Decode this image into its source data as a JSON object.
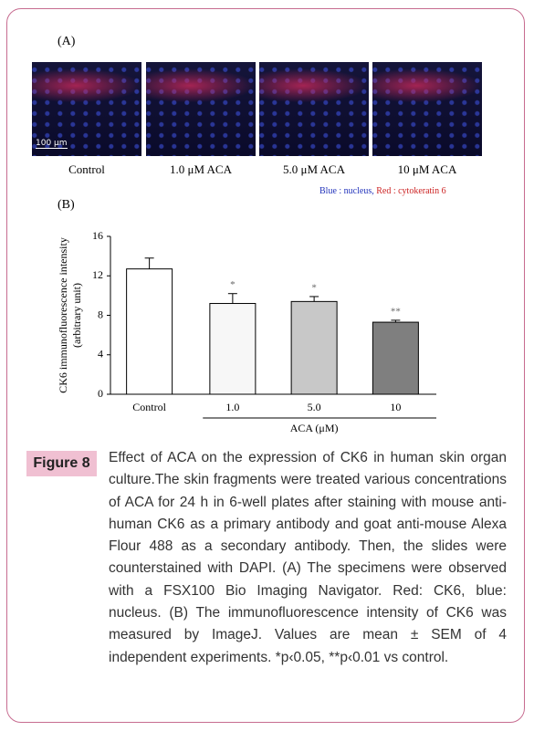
{
  "panel_a": {
    "label": "(A)",
    "scale_bar": "100 μm",
    "captions": [
      "Control",
      "1.0 μM ACA",
      "5.0 μM ACA",
      "10 μM ACA"
    ],
    "legend": [
      "Blue : nucleus,",
      "Red : cytokeratin 6"
    ]
  },
  "chart_data": {
    "type": "bar",
    "panel_label": "(B)",
    "categories": [
      "Control",
      "1.0",
      "5.0",
      "10"
    ],
    "values": [
      12.7,
      9.2,
      9.4,
      7.3
    ],
    "errors": [
      1.1,
      1.0,
      0.5,
      0.2
    ],
    "significance": [
      null,
      "*",
      "*",
      "**"
    ],
    "colors": [
      "#ffffff",
      "#f7f7f7",
      "#c8c8c8",
      "#7f7f7f"
    ],
    "ylabel": [
      "CK6 immunofluorescence intensity",
      "(arbitrary unit)"
    ],
    "xlabel": "ACA (μM)",
    "ylim": [
      0,
      16
    ],
    "yticks": [
      0,
      4,
      8,
      12,
      16
    ]
  },
  "figure": {
    "label": "Figure 8",
    "caption": "Effect of ACA on the expression of CK6 in human skin organ culture.The skin fragments were treated various concentrations of ACA for 24 h in 6-well plates after staining with mouse anti-human CK6 as a primary antibody and goat anti-mouse Alexa Flour 488 as a secondary antibody. Then, the slides were counterstained with DAPI. (A) The specimens were observed with a FSX100 Bio Imaging Navigator. Red: CK6, blue: nucleus. (B) The immunofluorescence intensity of CK6 was measured by ImageJ. Values are mean ± SEM of 4 independent experiments. *p‹0.05, **p‹0.01 vs control."
  }
}
